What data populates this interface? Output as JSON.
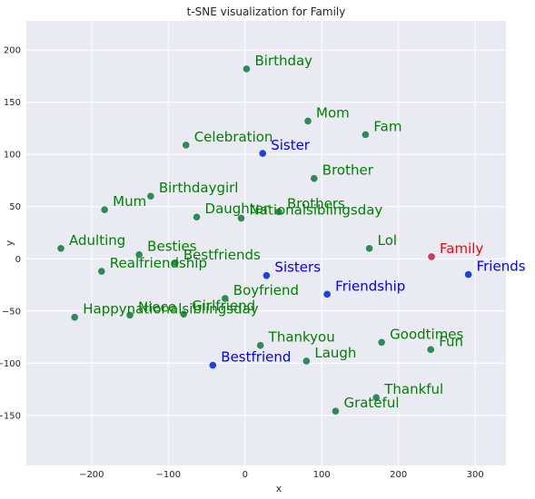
{
  "chart_data": {
    "type": "scatter",
    "title": "t-SNE visualization for Family",
    "xlabel": "x",
    "ylabel": "y",
    "xlim": [
      -285,
      340
    ],
    "ylim": [
      -198,
      228
    ],
    "xticks": [
      -200,
      -100,
      0,
      100,
      200,
      300
    ],
    "yticks": [
      -150,
      -100,
      -50,
      0,
      50,
      100,
      150,
      200
    ],
    "grid": true,
    "colors": {
      "background": "#eaeaf2",
      "point_default": "#2e8b57",
      "label_default": "#008000",
      "point_similar": "#1f3fe0",
      "label_similar": "#0000ff",
      "point_target": "#c0405a",
      "label_target": "#ff0000"
    },
    "points": [
      {
        "label": "Birthday",
        "x": 2,
        "y": 182,
        "group": "default"
      },
      {
        "label": "Mom",
        "x": 82,
        "y": 132,
        "group": "default"
      },
      {
        "label": "Fam",
        "x": 157,
        "y": 119,
        "group": "default"
      },
      {
        "label": "Celebration",
        "x": -77,
        "y": 109,
        "group": "default"
      },
      {
        "label": "Sister",
        "x": 23,
        "y": 101,
        "group": "similar"
      },
      {
        "label": "Brother",
        "x": 90,
        "y": 77,
        "group": "default"
      },
      {
        "label": "Birthdaygirl",
        "x": -123,
        "y": 60,
        "group": "default"
      },
      {
        "label": "Mum",
        "x": -183,
        "y": 47,
        "group": "default"
      },
      {
        "label": "Daughter",
        "x": -63,
        "y": 40,
        "group": "default"
      },
      {
        "label": "Brothers",
        "x": 44,
        "y": 45,
        "group": "default"
      },
      {
        "label": "Nationalsiblingsday",
        "x": -5,
        "y": 39,
        "group": "default"
      },
      {
        "label": "Adulting",
        "x": -240,
        "y": 10,
        "group": "default"
      },
      {
        "label": "Lol",
        "x": 162,
        "y": 10,
        "group": "default"
      },
      {
        "label": "Besties",
        "x": -138,
        "y": 4,
        "group": "default"
      },
      {
        "label": "Family",
        "x": 243,
        "y": 2,
        "group": "target"
      },
      {
        "label": "Bestfriends",
        "x": -91,
        "y": -4,
        "group": "default"
      },
      {
        "label": "Realfriendship",
        "x": -187,
        "y": -12,
        "group": "default"
      },
      {
        "label": "Sisters",
        "x": 28,
        "y": -16,
        "group": "similar"
      },
      {
        "label": "Friends",
        "x": 291,
        "y": -15,
        "group": "similar"
      },
      {
        "label": "Friendship",
        "x": 107,
        "y": -34,
        "group": "similar"
      },
      {
        "label": "Boyfriend",
        "x": -26,
        "y": -38,
        "group": "default"
      },
      {
        "label": "Girlfriend",
        "x": -80,
        "y": -53,
        "group": "default"
      },
      {
        "label": "Niece",
        "x": -150,
        "y": -54,
        "group": "default"
      },
      {
        "label": "Happynationalsiblingsday",
        "x": -222,
        "y": -56,
        "group": "default"
      },
      {
        "label": "Thankyou",
        "x": 20,
        "y": -83,
        "group": "default"
      },
      {
        "label": "Goodtimes",
        "x": 178,
        "y": -80,
        "group": "default"
      },
      {
        "label": "Fun",
        "x": 242,
        "y": -87,
        "group": "default"
      },
      {
        "label": "Laugh",
        "x": 80,
        "y": -98,
        "group": "default"
      },
      {
        "label": "Bestfriend",
        "x": -42,
        "y": -102,
        "group": "similar"
      },
      {
        "label": "Thankful",
        "x": 171,
        "y": -133,
        "group": "default"
      },
      {
        "label": "Grateful",
        "x": 118,
        "y": -146,
        "group": "default"
      }
    ]
  }
}
